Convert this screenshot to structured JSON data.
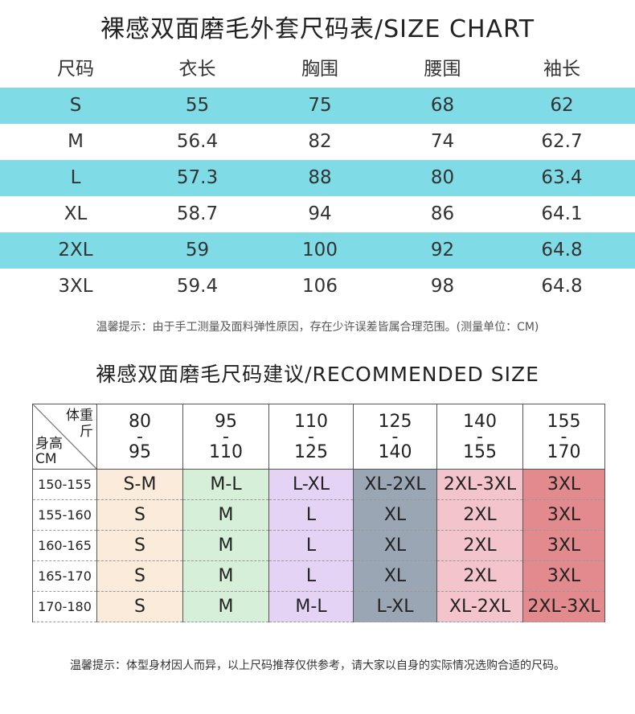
{
  "title": "裸感双面磨毛外套尺码表/SIZE CHART",
  "size_chart": {
    "headers": [
      "尺码",
      "衣长",
      "胸围",
      "腰围",
      "袖长"
    ],
    "rows": [
      [
        "S",
        "55",
        "75",
        "68",
        "62"
      ],
      [
        "M",
        "56.4",
        "82",
        "74",
        "62.7"
      ],
      [
        "L",
        "57.3",
        "88",
        "80",
        "63.4"
      ],
      [
        "XL",
        "58.7",
        "94",
        "86",
        "64.1"
      ],
      [
        "2XL",
        "59",
        "100",
        "92",
        "64.8"
      ],
      [
        "3XL",
        "59.4",
        "106",
        "98",
        "64.8"
      ]
    ],
    "stripe_color": "#7fdbe5"
  },
  "note1": "温馨提示：由于手工测量及面料弹性原因，存在少许误差皆属合理范围。(测量单位：CM)",
  "recommend": {
    "title": "裸感双面磨毛尺码建议/RECOMMENDED SIZE",
    "corner": {
      "weight_label": "体重",
      "weight_unit": "斤",
      "height_label": "身高",
      "height_unit": "CM"
    },
    "weights": [
      [
        "80",
        "-",
        "95"
      ],
      [
        "95",
        "-",
        "110"
      ],
      [
        "110",
        "-",
        "125"
      ],
      [
        "125",
        "-",
        "140"
      ],
      [
        "140",
        "-",
        "155"
      ],
      [
        "155",
        "-",
        "170"
      ]
    ],
    "rows": [
      {
        "height": "150-155",
        "sizes": [
          "S-M",
          "M-L",
          "L-XL",
          "XL-2XL",
          "2XL-3XL",
          "3XL"
        ]
      },
      {
        "height": "155-160",
        "sizes": [
          "S",
          "M",
          "L",
          "XL",
          "2XL",
          "3XL"
        ]
      },
      {
        "height": "160-165",
        "sizes": [
          "S",
          "M",
          "L",
          "XL",
          "2XL",
          "3XL"
        ]
      },
      {
        "height": "165-170",
        "sizes": [
          "S",
          "M",
          "L",
          "XL",
          "2XL",
          "3XL"
        ]
      },
      {
        "height": "170-180",
        "sizes": [
          "S",
          "M",
          "M-L",
          "L-XL",
          "XL-2XL",
          "2XL-3XL"
        ]
      }
    ],
    "column_colors": [
      "#fbebdb",
      "#d6efd8",
      "#e4d3f4",
      "#9ba6b5",
      "#f3c4cb",
      "#e28a8d"
    ]
  },
  "note2": "温馨提示：体型身材因人而异，以上尺码推荐仅供参考，请大家以自身的实际情况选购合适的尺码。"
}
